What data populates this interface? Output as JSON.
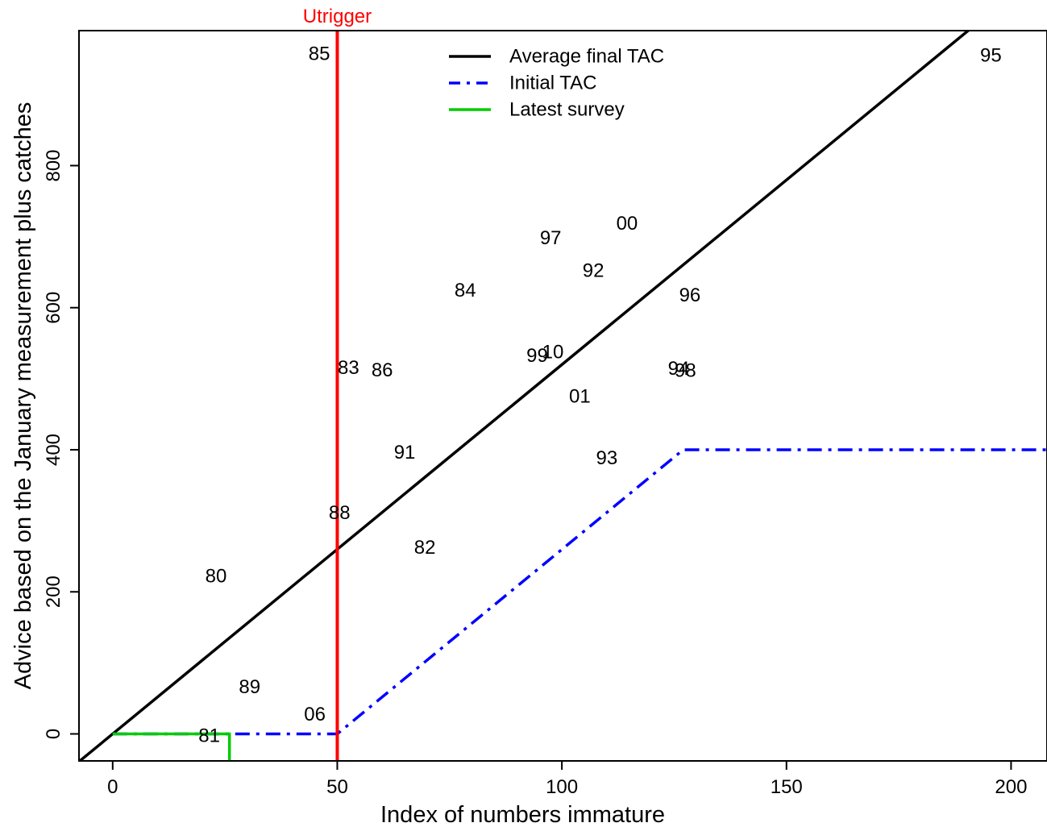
{
  "chart_data": {
    "type": "scatter",
    "title": "",
    "xlabel": "Index of numbers immature",
    "ylabel": "Advice based on the January measurement plus catches",
    "xlim": [
      -7.5,
      208
    ],
    "ylim": [
      -38,
      990
    ],
    "x_ticks": [
      0,
      50,
      100,
      150,
      200
    ],
    "y_ticks": [
      0,
      200,
      400,
      600,
      800
    ],
    "grid": false,
    "legend_position": "top-center",
    "points": [
      {
        "label": "80",
        "x": 23,
        "y": 222
      },
      {
        "label": "81",
        "x": 21.5,
        "y": -3
      },
      {
        "label": "82",
        "x": 69.5,
        "y": 262
      },
      {
        "label": "83",
        "x": 52.5,
        "y": 515
      },
      {
        "label": "84",
        "x": 78.5,
        "y": 624
      },
      {
        "label": "85",
        "x": 46,
        "y": 957
      },
      {
        "label": "86",
        "x": 60,
        "y": 512
      },
      {
        "label": "88",
        "x": 50.5,
        "y": 311
      },
      {
        "label": "89",
        "x": 30.5,
        "y": 66
      },
      {
        "label": "91",
        "x": 65,
        "y": 396
      },
      {
        "label": "92",
        "x": 107,
        "y": 652
      },
      {
        "label": "93",
        "x": 110,
        "y": 388
      },
      {
        "label": "94",
        "x": 126,
        "y": 514
      },
      {
        "label": "95",
        "x": 195.5,
        "y": 955
      },
      {
        "label": "96",
        "x": 128.5,
        "y": 617
      },
      {
        "label": "97",
        "x": 97.5,
        "y": 698
      },
      {
        "label": "98",
        "x": 127.5,
        "y": 511
      },
      {
        "label": "99",
        "x": 94.5,
        "y": 532
      },
      {
        "label": "00",
        "x": 114.5,
        "y": 718
      },
      {
        "label": "01",
        "x": 104,
        "y": 475
      },
      {
        "label": "06",
        "x": 45,
        "y": 27
      },
      {
        "label": "10",
        "x": 98,
        "y": 537
      }
    ],
    "series": [
      {
        "name": "Average final TAC",
        "color": "#000000",
        "style": "solid",
        "x": [
          -10,
          192
        ],
        "y": [
          -52,
          998
        ]
      },
      {
        "name": "Initial TAC",
        "color": "#0000FF",
        "style": "dashdot",
        "x": [
          0,
          50,
          127,
          208
        ],
        "y": [
          0,
          0,
          400,
          400
        ]
      },
      {
        "name": "Latest survey",
        "color": "#00CC00",
        "style": "solid",
        "x": [
          0,
          26,
          26
        ],
        "y": [
          0,
          0,
          -38
        ]
      }
    ],
    "annotations": [
      {
        "label": "Utrigger",
        "x": 50,
        "color": "#FF0000"
      }
    ]
  }
}
